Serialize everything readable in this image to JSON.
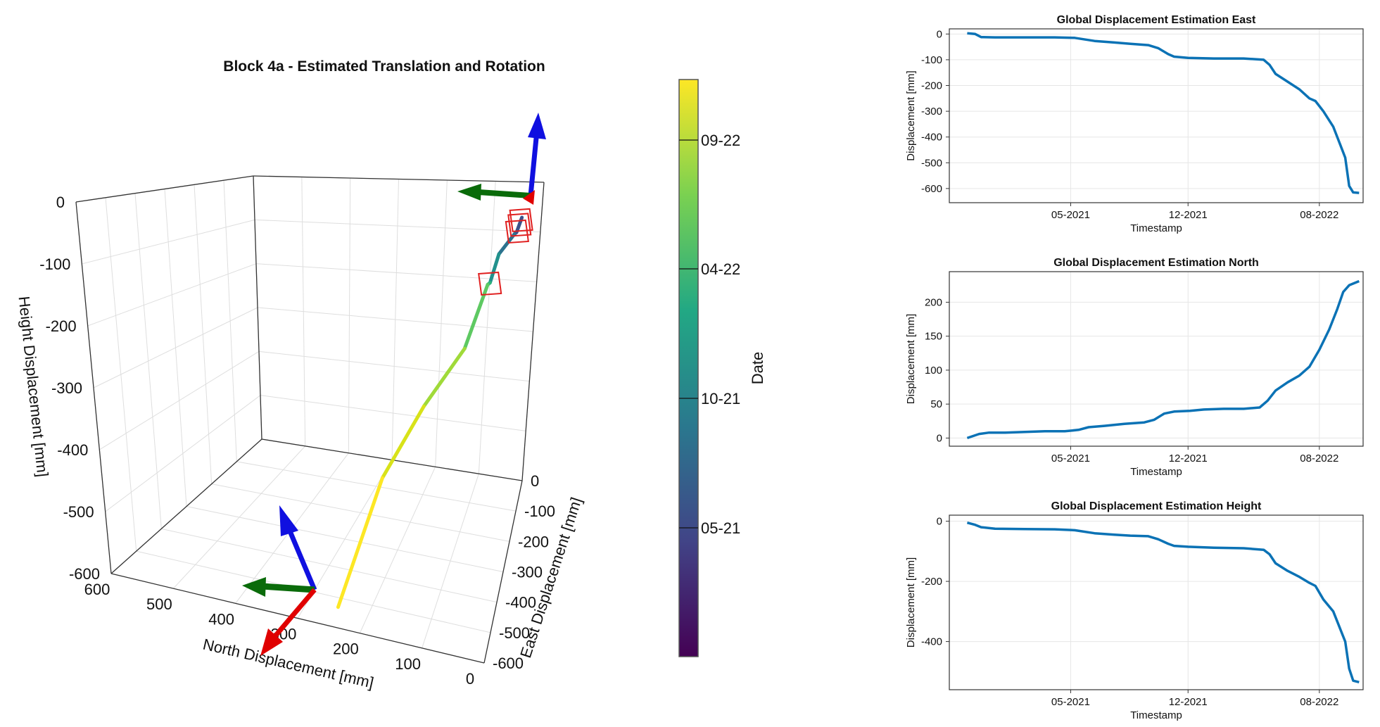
{
  "chart_data": [
    {
      "type": "line3d",
      "title": "Block 4a - Estimated Translation and Rotation",
      "xlabel": "North Displacement [mm]",
      "ylabel": "East Displacement [mm]",
      "zlabel": "Height Displacement [mm]",
      "x_ticks": [
        "600",
        "500",
        "400",
        "300",
        "200",
        "100",
        "0"
      ],
      "y_ticks": [
        "0",
        "-100",
        "-200",
        "-300",
        "-400",
        "-500",
        "-600"
      ],
      "z_ticks": [
        "0",
        "-100",
        "-200",
        "-300",
        "-400",
        "-500",
        "-600"
      ],
      "x_range": [
        0,
        600
      ],
      "y_range": [
        -600,
        0
      ],
      "z_range": [
        -600,
        0
      ],
      "trajectory": [
        {
          "north": 0,
          "east": 0,
          "height": 0
        },
        {
          "north": 10,
          "east": -15,
          "height": -25
        },
        {
          "north": 15,
          "east": -15,
          "height": -30
        },
        {
          "north": 45,
          "east": -45,
          "height": -60
        },
        {
          "north": 55,
          "east": -100,
          "height": -90
        },
        {
          "north": 60,
          "east": -100,
          "height": -95
        },
        {
          "north": 90,
          "east": -200,
          "height": -180
        },
        {
          "north": 150,
          "east": -300,
          "height": -260
        },
        {
          "north": 200,
          "east": -420,
          "height": -360
        },
        {
          "north": 231,
          "east": -618,
          "height": -540
        }
      ],
      "markers_rotation_frames": 4,
      "colorbar": {
        "label": "Date",
        "ticks": [
          "09-22",
          "04-22",
          "10-21",
          "05-21"
        ],
        "colormap": [
          "#440154",
          "#3b528b",
          "#21918c",
          "#5ec962",
          "#fde725"
        ]
      },
      "colors": {
        "axis_x": "#e00000",
        "axis_y": "#0a6b0a",
        "axis_z": "#1010e0",
        "marker": "#e02020"
      }
    },
    {
      "type": "line",
      "title": "Global Displacement Estimation East",
      "xlabel": "Timestamp",
      "ylabel": "Displacement [mm]",
      "x_ticks": [
        "05-2021",
        "12-2021",
        "08-2022"
      ],
      "x_tick_values": [
        2021.33,
        2021.92,
        2022.58
      ],
      "xlim": [
        2020.72,
        2022.8
      ],
      "y_ticks": [
        "0",
        "-100",
        "-200",
        "-300",
        "-400",
        "-500",
        "-600"
      ],
      "ylim": [
        -655,
        20
      ],
      "series": [
        {
          "color": "#0b72b5",
          "points": [
            [
              2020.81,
              3
            ],
            [
              2020.85,
              0
            ],
            [
              2020.88,
              -12
            ],
            [
              2020.95,
              -13
            ],
            [
              2021.1,
              -13
            ],
            [
              2021.25,
              -13
            ],
            [
              2021.35,
              -15
            ],
            [
              2021.45,
              -27
            ],
            [
              2021.55,
              -33
            ],
            [
              2021.63,
              -38
            ],
            [
              2021.72,
              -43
            ],
            [
              2021.77,
              -55
            ],
            [
              2021.82,
              -78
            ],
            [
              2021.85,
              -88
            ],
            [
              2021.92,
              -93
            ],
            [
              2022.05,
              -95
            ],
            [
              2022.2,
              -95
            ],
            [
              2022.3,
              -100
            ],
            [
              2022.33,
              -120
            ],
            [
              2022.36,
              -155
            ],
            [
              2022.42,
              -185
            ],
            [
              2022.48,
              -215
            ],
            [
              2022.53,
              -250
            ],
            [
              2022.56,
              -260
            ],
            [
              2022.6,
              -300
            ],
            [
              2022.65,
              -360
            ],
            [
              2022.68,
              -420
            ],
            [
              2022.71,
              -480
            ],
            [
              2022.73,
              -590
            ],
            [
              2022.75,
              -615
            ],
            [
              2022.78,
              -617
            ]
          ]
        }
      ]
    },
    {
      "type": "line",
      "title": "Global Displacement Estimation North",
      "xlabel": "Timestamp",
      "ylabel": "Displacement [mm]",
      "x_ticks": [
        "05-2021",
        "12-2021",
        "08-2022"
      ],
      "x_tick_values": [
        2021.33,
        2021.92,
        2022.58
      ],
      "xlim": [
        2020.72,
        2022.8
      ],
      "y_ticks": [
        "0",
        "50",
        "100",
        "150",
        "200"
      ],
      "ylim": [
        -12,
        245
      ],
      "series": [
        {
          "color": "#0b72b5",
          "points": [
            [
              2020.81,
              0
            ],
            [
              2020.87,
              6
            ],
            [
              2020.92,
              8
            ],
            [
              2021.0,
              8
            ],
            [
              2021.1,
              9
            ],
            [
              2021.2,
              10
            ],
            [
              2021.3,
              10
            ],
            [
              2021.37,
              12
            ],
            [
              2021.42,
              16
            ],
            [
              2021.5,
              18
            ],
            [
              2021.6,
              21
            ],
            [
              2021.7,
              23
            ],
            [
              2021.75,
              27
            ],
            [
              2021.8,
              36
            ],
            [
              2021.85,
              39
            ],
            [
              2021.93,
              40
            ],
            [
              2022.0,
              42
            ],
            [
              2022.1,
              43
            ],
            [
              2022.2,
              43
            ],
            [
              2022.28,
              45
            ],
            [
              2022.32,
              55
            ],
            [
              2022.36,
              70
            ],
            [
              2022.42,
              82
            ],
            [
              2022.48,
              92
            ],
            [
              2022.53,
              105
            ],
            [
              2022.58,
              130
            ],
            [
              2022.63,
              160
            ],
            [
              2022.67,
              190
            ],
            [
              2022.7,
              215
            ],
            [
              2022.73,
              225
            ],
            [
              2022.78,
              231
            ]
          ]
        }
      ]
    },
    {
      "type": "line",
      "title": "Global Displacement Estimation Height",
      "xlabel": "Timestamp",
      "ylabel": "Displacement [mm]",
      "x_ticks": [
        "05-2021",
        "12-2021",
        "08-2022"
      ],
      "x_tick_values": [
        2021.33,
        2021.92,
        2022.58
      ],
      "xlim": [
        2020.72,
        2022.8
      ],
      "y_ticks": [
        "0",
        "-200",
        "-400"
      ],
      "ylim": [
        -560,
        20
      ],
      "series": [
        {
          "color": "#0b72b5",
          "points": [
            [
              2020.81,
              -5
            ],
            [
              2020.85,
              -12
            ],
            [
              2020.88,
              -20
            ],
            [
              2020.95,
              -25
            ],
            [
              2021.1,
              -26
            ],
            [
              2021.25,
              -27
            ],
            [
              2021.35,
              -30
            ],
            [
              2021.45,
              -40
            ],
            [
              2021.55,
              -45
            ],
            [
              2021.63,
              -48
            ],
            [
              2021.72,
              -50
            ],
            [
              2021.77,
              -60
            ],
            [
              2021.82,
              -75
            ],
            [
              2021.85,
              -82
            ],
            [
              2021.92,
              -85
            ],
            [
              2022.05,
              -88
            ],
            [
              2022.2,
              -90
            ],
            [
              2022.3,
              -95
            ],
            [
              2022.33,
              -110
            ],
            [
              2022.36,
              -140
            ],
            [
              2022.42,
              -165
            ],
            [
              2022.48,
              -185
            ],
            [
              2022.53,
              -205
            ],
            [
              2022.56,
              -215
            ],
            [
              2022.6,
              -260
            ],
            [
              2022.65,
              -300
            ],
            [
              2022.68,
              -350
            ],
            [
              2022.71,
              -400
            ],
            [
              2022.73,
              -490
            ],
            [
              2022.75,
              -530
            ],
            [
              2022.78,
              -535
            ]
          ]
        }
      ]
    }
  ]
}
